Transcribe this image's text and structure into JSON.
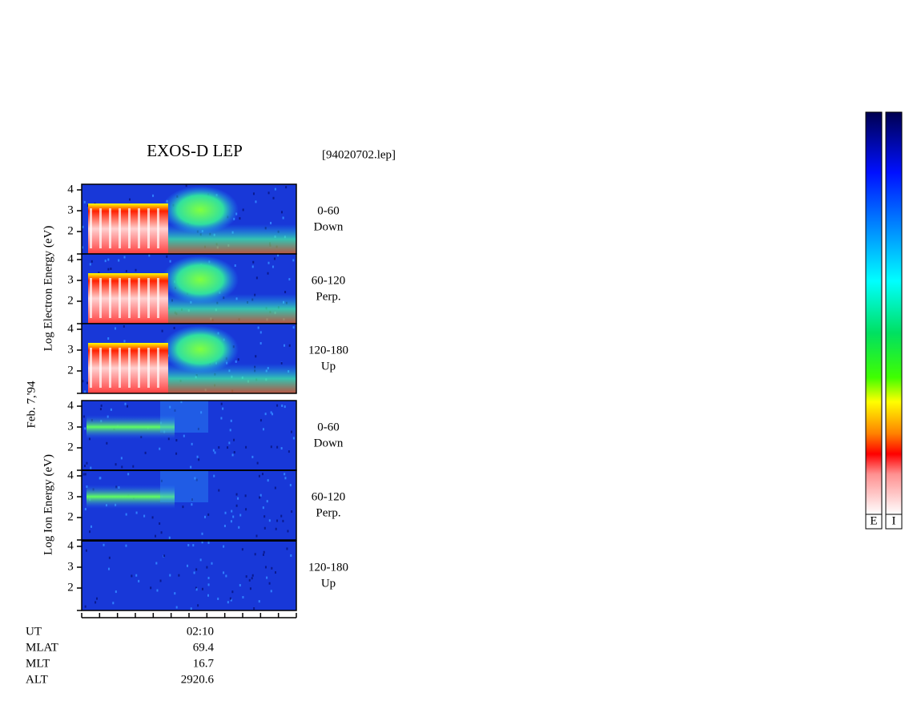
{
  "header": {
    "title": "EXOS-D LEP",
    "file": "[94020702.lep]"
  },
  "electron": {
    "axis_label": "Log Electron Energy (eV)",
    "yticks": [
      4,
      3,
      2
    ],
    "panels": [
      {
        "pitch": "0-60",
        "direction": "Down"
      },
      {
        "pitch": "60-120",
        "direction": "Perp."
      },
      {
        "pitch": "120-180",
        "direction": "Up"
      }
    ]
  },
  "date": "Feb. 7,'94",
  "ion": {
    "axis_label": "Log Ion Energy (eV)",
    "yticks": [
      4,
      3,
      2
    ],
    "panels": [
      {
        "pitch": "0-60",
        "direction": "Down"
      },
      {
        "pitch": "60-120",
        "direction": "Perp."
      },
      {
        "pitch": "120-180",
        "direction": "Up"
      }
    ]
  },
  "time_axis": {
    "rows": [
      {
        "label": "UT",
        "value": "02:10"
      },
      {
        "label": "MLAT",
        "value": "69.4"
      },
      {
        "label": "MLT",
        "value": "16.7"
      },
      {
        "label": "ALT",
        "value": "2920.6"
      }
    ]
  },
  "colorbars": [
    "E",
    "I"
  ]
}
